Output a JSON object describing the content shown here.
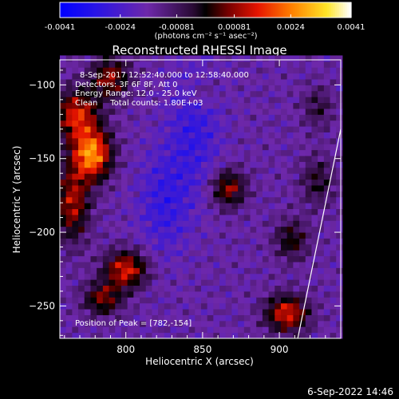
{
  "chart_data": {
    "type": "heatmap",
    "title": "Reconstructed RHESSI Image",
    "xlabel": "Heliocentric X (arcsec)",
    "ylabel": "Heliocentric Y (arcsec)",
    "xlim": [
      757,
      940
    ],
    "ylim": [
      -272,
      -83
    ],
    "x_ticks": [
      800,
      850,
      900
    ],
    "y_ticks": [
      -100,
      -150,
      -200,
      -250
    ],
    "colorbar": {
      "range": [
        -0.0041,
        0.0041
      ],
      "tick_values": [
        -0.0041,
        -0.0024,
        -0.00081,
        0.00081,
        0.0024,
        0.0041
      ],
      "tick_labels": [
        "-0.0041",
        "-0.0024",
        "-0.00081",
        "0.00081",
        "0.0024",
        "0.0041"
      ],
      "unit_label": "(photons cm⁻² s⁻¹ asec⁻²)"
    },
    "annotations": {
      "time_range": "8-Sep-2017 12:52:40.000 to 12:58:40.000",
      "detectors": "Detectors: 3F 6F 8F, Att 0",
      "energy": "Energy Range: 12.0 - 25.0 keV",
      "method": "Clean     Total counts: 1.80E+03",
      "peak": "Position of Peak = [782,-154]"
    },
    "peak_position": [
      782,
      -154
    ],
    "sources": [
      {
        "x": 778,
        "y": -147,
        "intensity": 0.0041,
        "sigma_x": 9,
        "sigma_y": 12
      },
      {
        "x": 768,
        "y": -120,
        "intensity": 0.003,
        "sigma_x": 10,
        "sigma_y": 12
      },
      {
        "x": 790,
        "y": -95,
        "intensity": 0.0024,
        "sigma_x": 9,
        "sigma_y": 10
      },
      {
        "x": 765,
        "y": -180,
        "intensity": 0.0026,
        "sigma_x": 8,
        "sigma_y": 18
      },
      {
        "x": 800,
        "y": -225,
        "intensity": 0.003,
        "sigma_x": 10,
        "sigma_y": 9
      },
      {
        "x": 785,
        "y": -245,
        "intensity": 0.0022,
        "sigma_x": 9,
        "sigma_y": 8
      },
      {
        "x": 867,
        "y": -170,
        "intensity": 0.0024,
        "sigma_x": 8,
        "sigma_y": 9
      },
      {
        "x": 905,
        "y": -255,
        "intensity": 0.003,
        "sigma_x": 10,
        "sigma_y": 9
      },
      {
        "x": 908,
        "y": -205,
        "intensity": 0.0017,
        "sigma_x": 8,
        "sigma_y": 10
      },
      {
        "x": 925,
        "y": -165,
        "intensity": 0.0014,
        "sigma_x": 8,
        "sigma_y": 12
      },
      {
        "x": 925,
        "y": -115,
        "intensity": 0.0012,
        "sigma_x": 7,
        "sigma_y": 10
      },
      {
        "x": 850,
        "y": -105,
        "intensity": 0.0009,
        "sigma_x": 7,
        "sigma_y": 7
      },
      {
        "x": 845,
        "y": -130,
        "intensity": -0.0012,
        "sigma_x": 12,
        "sigma_y": 30
      },
      {
        "x": 825,
        "y": -180,
        "intensity": -0.0012,
        "sigma_x": 12,
        "sigma_y": 25
      }
    ],
    "limb_line": [
      [
        912,
        -272
      ],
      [
        940,
        -130
      ]
    ]
  },
  "footer": {
    "date": "6-Sep-2022 14:46"
  },
  "colors": {
    "background": "#000000",
    "foreground": "#ffffff"
  }
}
